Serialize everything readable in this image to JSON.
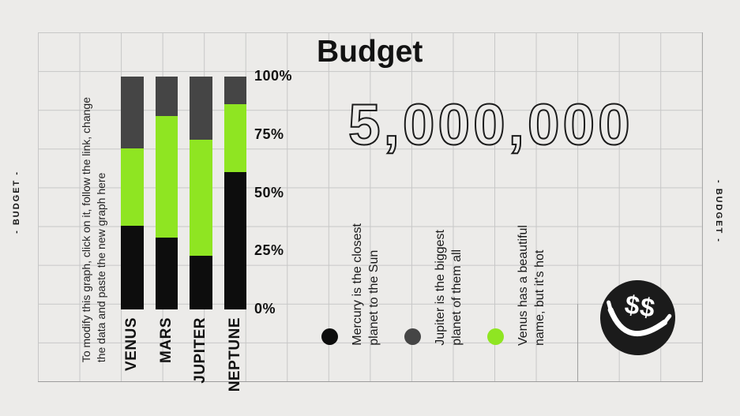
{
  "slide": {
    "title": "Budget",
    "amount": "5,000,000",
    "instruction": "To modify this graph, click on it, follow the link, change\nthe data and paste the new graph here",
    "edge_left": "- BUDGET -",
    "edge_right": "- BUDGET -"
  },
  "colors": {
    "background": "#ecebe9",
    "grid": "#c7c7c7",
    "black": "#0d0d0d",
    "green": "#8fe522",
    "gray": "#454545",
    "smiley": "#1b1b1b",
    "text": "#141414"
  },
  "chart_data": {
    "type": "bar",
    "stacked": true,
    "stack_order": "bottom-to-top",
    "categories": [
      "VENUS",
      "MARS",
      "JUPITER",
      "NEPTUNE"
    ],
    "series": [
      {
        "name": "Mercury",
        "color_key": "black",
        "values": [
          36,
          31,
          23,
          59
        ]
      },
      {
        "name": "Venus",
        "color_key": "green",
        "values": [
          33,
          52,
          50,
          29
        ]
      },
      {
        "name": "Jupiter",
        "color_key": "gray",
        "values": [
          31,
          17,
          27,
          12
        ]
      }
    ],
    "y_ticks": [
      "0%",
      "25%",
      "50%",
      "75%",
      "100%"
    ],
    "ylim": [
      0,
      100
    ],
    "unit": "%",
    "grid": true,
    "legend_position": "bottom-right"
  },
  "legend": {
    "items": [
      {
        "color_key": "black",
        "label": "Mercury is the closest\nplanet to the Sun"
      },
      {
        "color_key": "gray",
        "label": "Jupiter is the biggest\nplanet of them all"
      },
      {
        "color_key": "green",
        "label": "Venus has a beautiful\nname, but it's hot"
      }
    ]
  },
  "smiley": {
    "icon": "dollar-smiley",
    "eyes": "$$"
  }
}
